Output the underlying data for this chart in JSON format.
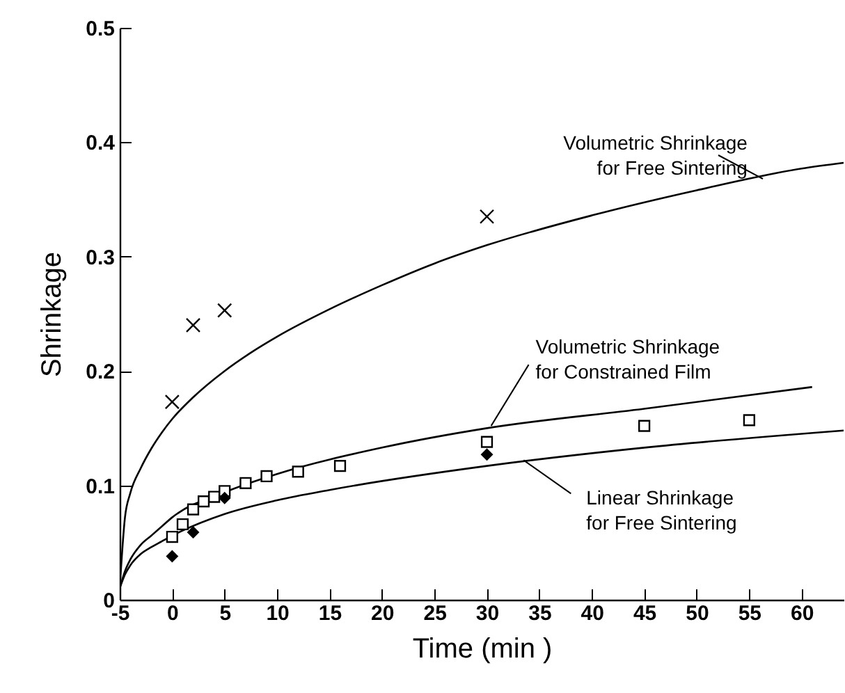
{
  "chart_data": {
    "type": "line",
    "xlabel": "Time (min )",
    "ylabel": "Shrinkage",
    "xlim": [
      -5,
      64
    ],
    "ylim": [
      0,
      0.5
    ],
    "xticks": [
      -5,
      0,
      5,
      10,
      15,
      20,
      25,
      30,
      35,
      40,
      45,
      50,
      55,
      60
    ],
    "yticks": [
      {
        "value": 0,
        "label": "0"
      },
      {
        "value": 0.1,
        "label": "0.1"
      },
      {
        "value": 0.2,
        "label": "0.2"
      },
      {
        "value": 0.3,
        "label": "0.3"
      },
      {
        "value": 0.4,
        "label": "0.4"
      },
      {
        "value": 0.5,
        "label": "0.5"
      }
    ],
    "grid": false,
    "series": [
      {
        "color": "#000000",
        "x": [
          -5,
          -4.5,
          -4,
          -3,
          -2,
          -1,
          0,
          2,
          5,
          7.5,
          10,
          15,
          20,
          25,
          30,
          40,
          50,
          60,
          64
        ],
        "values": [
          0.01,
          0.072,
          0.093,
          0.115,
          0.132,
          0.146,
          0.158,
          0.177,
          0.2,
          0.216,
          0.23,
          0.254,
          0.275,
          0.294,
          0.31,
          0.336,
          0.358,
          0.377,
          0.382
        ]
      },
      {
        "color": "#000000",
        "x": [
          -5,
          -4.5,
          -4,
          -3,
          -2,
          -1,
          0,
          5,
          10,
          20,
          30,
          45,
          61
        ],
        "values": [
          0.01,
          0.025,
          0.035,
          0.048,
          0.056,
          0.064,
          0.072,
          0.094,
          0.11,
          0.133,
          0.15,
          0.167,
          0.186
        ]
      },
      {
        "color": "#000000",
        "x": [
          -5,
          -4.5,
          -4,
          -3,
          -2,
          -1,
          0,
          5,
          10,
          15,
          30,
          45,
          64
        ],
        "values": [
          0.01,
          0.022,
          0.03,
          0.04,
          0.046,
          0.051,
          0.056,
          0.075,
          0.087,
          0.096,
          0.117,
          0.133,
          0.148
        ]
      },
      {
        "type": "scatter",
        "marker": "cross",
        "color": "#000000",
        "x": [
          0,
          2,
          5,
          30
        ],
        "values": [
          0.173,
          0.24,
          0.253,
          0.335
        ]
      },
      {
        "type": "scatter",
        "marker": "square",
        "color": "#000000",
        "x": [
          0,
          1,
          2,
          3,
          4,
          5,
          7,
          9,
          12,
          16,
          30,
          45,
          55
        ],
        "values": [
          0.055,
          0.066,
          0.079,
          0.086,
          0.09,
          0.095,
          0.102,
          0.108,
          0.112,
          0.117,
          0.138,
          0.152,
          0.157
        ]
      },
      {
        "type": "scatter",
        "marker": "diamond",
        "color": "#000000",
        "x": [
          0,
          2,
          5,
          30
        ],
        "values": [
          0.038,
          0.059,
          0.089,
          0.127
        ]
      }
    ],
    "annotations": [
      {
        "text": "Volumetric Shrinkage\nfor Free Sintering",
        "x": 56.3,
        "y": 0.368
      },
      {
        "text": "Volumetric Shrinkage\nfor Constrained Film",
        "x": 30.4,
        "y": 0.152
      },
      {
        "text": "Linear Shrinkage\nfor Free Sintering",
        "x": 33.5,
        "y": 0.122
      }
    ]
  }
}
